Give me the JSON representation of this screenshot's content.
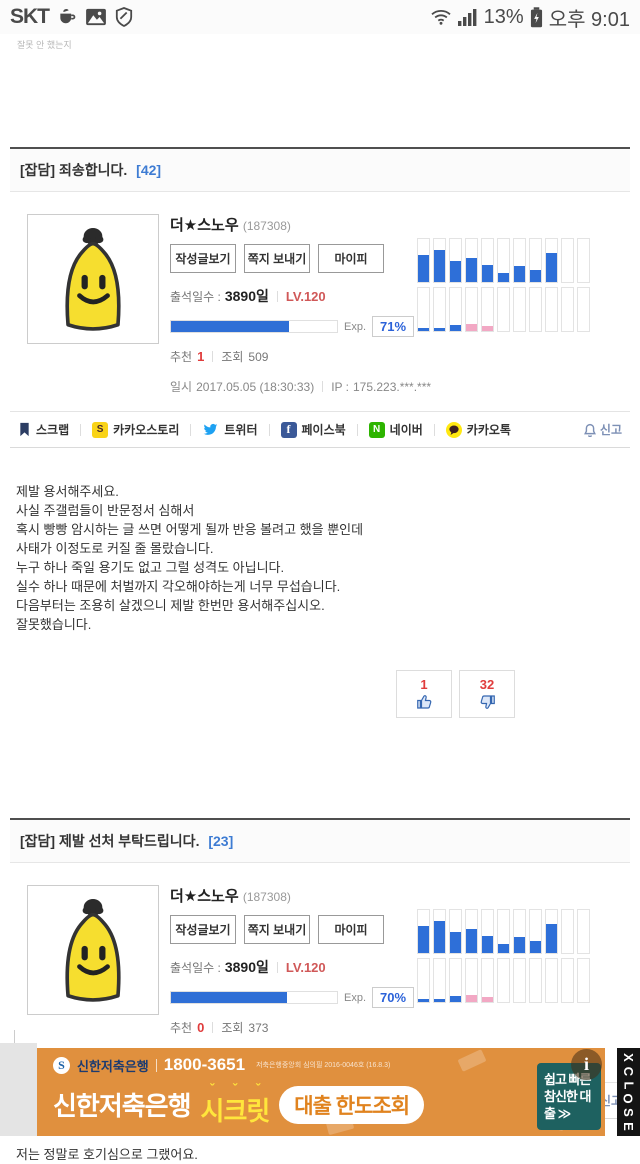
{
  "status_bar": {
    "carrier": "SKT",
    "battery_percent": "13%",
    "time": "오후 9:01"
  },
  "top_snippet": "잘못 안 했는지",
  "share": {
    "items": [
      {
        "label": "스크랩"
      },
      {
        "label": "카카오스토리"
      },
      {
        "label": "트위터"
      },
      {
        "label": "페이스북"
      },
      {
        "label": "네이버"
      },
      {
        "label": "카카오톡"
      }
    ],
    "report_label": "신고"
  },
  "posts": [
    {
      "category": "[잡담]",
      "title": "죄송합니다.",
      "comments": "[42]",
      "profile": {
        "nickname": "더★스노우",
        "user_id": "(187308)",
        "buttons": [
          "작성글보기",
          "쪽지 보내기",
          "마이피"
        ],
        "attendance_label": "출석일수 :",
        "attendance": "3890일",
        "level": "LV.120",
        "exp_label": "Exp.",
        "exp": "71%",
        "exp_percent": 71,
        "recommend_label": "추천",
        "recommend": "1",
        "views_label": "조회",
        "views": "509",
        "date_label": "일시",
        "date": "2017.05.05 (18:30:33)",
        "ip_label": "IP :",
        "ip": "175.223.***.***"
      },
      "activity": {
        "type": "bar",
        "blue": "#2e6fd8",
        "pink": "#f2a8c4",
        "rows": [
          {
            "values": [
              63,
              75,
              50,
              57,
              40,
              20,
              37,
              28,
              68,
              0,
              0
            ],
            "colors": [
              "blue",
              "blue",
              "blue",
              "blue",
              "blue",
              "blue",
              "blue",
              "blue",
              "blue",
              "blue",
              "blue"
            ]
          },
          {
            "values": [
              8,
              8,
              13,
              17,
              11,
              0,
              0,
              0,
              0,
              0,
              0
            ],
            "colors": [
              "blue",
              "blue",
              "blue",
              "pink",
              "pink",
              "blue",
              "blue",
              "blue",
              "blue",
              "blue",
              "blue"
            ]
          }
        ]
      },
      "body_lines": [
        "제발 용서해주세요.",
        "사실 주갤럼들이 반문정서 심해서",
        "혹시 빵빵 암시하는 글 쓰면 어떻게 될까 반응 볼려고 했을 뿐인데",
        "사태가 이정도로 커질 줄 몰랐습니다.",
        "누구 하나 죽일 용기도 없고 그럴 성격도 아닙니다.",
        "실수 하나 때문에 처벌까지 각오해야하는게 너무 무섭습니다.",
        "다음부터는 조용히 살겠으니 제발 한번만 용서해주십시오.",
        "잘못했습니다."
      ],
      "votes": {
        "up": "1",
        "down": "32"
      }
    },
    {
      "category": "[잡담]",
      "title": "제발 선처 부탁드립니다.",
      "comments": "[23]",
      "profile": {
        "nickname": "더★스노우",
        "user_id": "(187308)",
        "buttons": [
          "작성글보기",
          "쪽지 보내기",
          "마이피"
        ],
        "attendance_label": "출석일수 :",
        "attendance": "3890일",
        "level": "LV.120",
        "exp_label": "Exp.",
        "exp": "70%",
        "exp_percent": 70,
        "recommend_label": "추천",
        "recommend": "0",
        "views_label": "조회",
        "views": "373",
        "date_label": "일시",
        "date": "2017.05.05 (18:42:29)",
        "ip_label": "IP :",
        "ip": "175.223.***.***"
      },
      "activity": {
        "type": "bar",
        "blue": "#2e6fd8",
        "pink": "#f2a8c4",
        "rows": [
          {
            "values": [
              63,
              75,
              50,
              57,
              40,
              20,
              37,
              28,
              68,
              0,
              0
            ],
            "colors": [
              "blue",
              "blue",
              "blue",
              "blue",
              "blue",
              "blue",
              "blue",
              "blue",
              "blue",
              "blue",
              "blue"
            ]
          },
          {
            "values": [
              8,
              8,
              13,
              17,
              11,
              0,
              0,
              0,
              0,
              0,
              0
            ],
            "colors": [
              "blue",
              "blue",
              "blue",
              "pink",
              "pink",
              "blue",
              "blue",
              "blue",
              "blue",
              "blue",
              "blue"
            ]
          }
        ]
      },
      "body_lines": [
        "저는 정말로 호기심으로 그랬어요."
      ]
    }
  ],
  "ad": {
    "bank_name": "신한저축은행",
    "phone": "1800-3651",
    "legal": "저축은행중앙회 심의필 2016-0046호 (16.8.3)",
    "logo_glyph": "S",
    "headline_bank": "신한저축은행",
    "headline_secret": "시크릿",
    "pill": "대출 한도조회",
    "side_line1": "쉽고 빠른",
    "side_line2": "참신한 대출 ≫",
    "info_glyph": "i"
  },
  "close_strip": {
    "letters": [
      "X",
      "C",
      "L",
      "O",
      "S",
      "E"
    ]
  }
}
